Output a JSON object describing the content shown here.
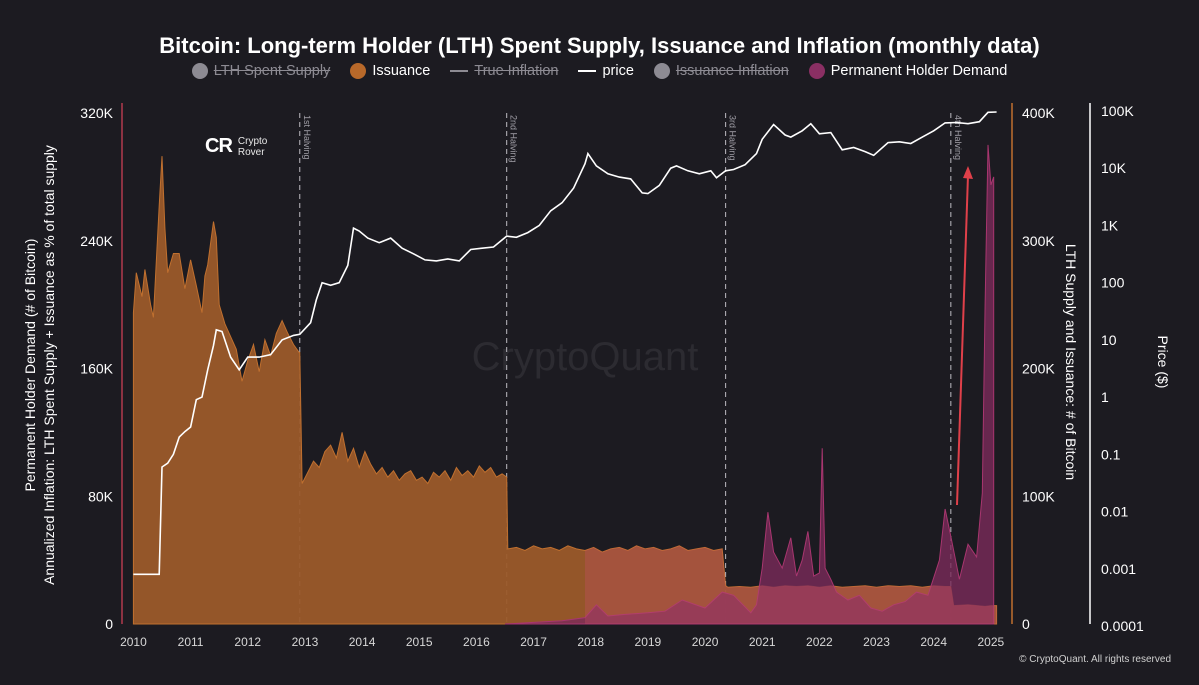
{
  "title": "Bitcoin: Long-term Holder (LTH) Spent Supply, Issuance and Inflation (monthly data)",
  "legend": [
    {
      "label": "LTH Spent Supply",
      "style": "dot",
      "color": "#8d8b93",
      "visible": false
    },
    {
      "label": "Issuance",
      "style": "dot",
      "color": "#b8692a",
      "visible": true
    },
    {
      "label": "True Inflation",
      "style": "line",
      "color": "#8d8b93",
      "visible": false
    },
    {
      "label": "price",
      "style": "line",
      "color": "#ffffff",
      "visible": true
    },
    {
      "label": "Issuance Inflation",
      "style": "dot",
      "color": "#8d8b93",
      "visible": false
    },
    {
      "label": "Permanent Holder Demand",
      "style": "dot",
      "color": "#8a2f63",
      "visible": true
    }
  ],
  "logo": {
    "line1": "Crypto",
    "line2": "Rover",
    "mark": "CR"
  },
  "watermark": "CryptoQuant",
  "copyright": "© CryptoQuant. All rights reserved",
  "axes": {
    "left_label_line1": "Permanent Holder Demand (# of Bitcoin)",
    "left_label_line2": "Annualized Inflation: LTH Spent Supply + Issuance as % of total supply",
    "right_label": "LTH Supply and Issuance: # of Bitcoin",
    "price_label": "Price ($)"
  },
  "colors": {
    "issuance_fill": "#9b5a2a",
    "issuance_stroke": "#c0702f",
    "demand_fill": "#7a2a5a",
    "demand_stroke": "#a8366f",
    "overlap_fill": "#c44d63",
    "price_line": "#ffffff",
    "arrow": "#e0404a",
    "left_axis_line": "#b23a4e",
    "right_axis_line": "#c0702f",
    "price_axis_line": "#ffffff"
  },
  "chart_data": {
    "type": "area",
    "x_range": [
      2009.8,
      2025.3
    ],
    "x_ticks": [
      2010,
      2011,
      2012,
      2013,
      2014,
      2015,
      2016,
      2017,
      2018,
      2019,
      2020,
      2021,
      2022,
      2023,
      2024,
      2025
    ],
    "y_left": {
      "ylim": [
        0,
        320000
      ],
      "ticks": [
        0,
        80000,
        160000,
        240000,
        320000
      ],
      "tick_labels": [
        "0",
        "80K",
        "160K",
        "240K",
        "320K"
      ]
    },
    "y_right": {
      "ylim": [
        0,
        400000
      ],
      "ticks": [
        0,
        100000,
        200000,
        300000,
        400000
      ],
      "tick_labels": [
        "0",
        "100K",
        "200K",
        "300K",
        "400K"
      ]
    },
    "y_price": {
      "scale": "log",
      "ylim": [
        0.0001,
        100000
      ],
      "ticks": [
        0.0001,
        0.001,
        0.01,
        0.1,
        1,
        10,
        100,
        1000,
        10000,
        100000
      ],
      "tick_labels": [
        "0.0001",
        "0.001",
        "0.01",
        "0.1",
        "1",
        "10",
        "100",
        "1K",
        "10K",
        "100K"
      ]
    },
    "halvings": [
      {
        "label": "1st Halving",
        "date": 2012.91
      },
      {
        "label": "2nd Halving",
        "date": 2016.53
      },
      {
        "label": "3rd Halving",
        "date": 2020.36
      },
      {
        "label": "4th Halving",
        "date": 2024.3
      }
    ],
    "series": [
      {
        "name": "Issuance",
        "axis": "left",
        "x": [
          2010.0,
          2010.05,
          2010.15,
          2010.2,
          2010.3,
          2010.35,
          2010.45,
          2010.5,
          2010.55,
          2010.6,
          2010.7,
          2010.8,
          2010.9,
          2011.0,
          2011.1,
          2011.2,
          2011.25,
          2011.3,
          2011.4,
          2011.45,
          2011.5,
          2011.6,
          2011.7,
          2011.8,
          2011.9,
          2012.0,
          2012.1,
          2012.2,
          2012.3,
          2012.4,
          2012.5,
          2012.6,
          2012.7,
          2012.8,
          2012.9,
          2012.91,
          2012.95,
          2013.05,
          2013.15,
          2013.25,
          2013.35,
          2013.45,
          2013.55,
          2013.65,
          2013.75,
          2013.85,
          2013.95,
          2014.05,
          2014.15,
          2014.25,
          2014.35,
          2014.45,
          2014.55,
          2014.65,
          2014.75,
          2014.85,
          2014.95,
          2015.05,
          2015.15,
          2015.25,
          2015.35,
          2015.45,
          2015.55,
          2015.65,
          2015.75,
          2015.85,
          2015.95,
          2016.05,
          2016.15,
          2016.25,
          2016.35,
          2016.45,
          2016.53,
          2016.55,
          2016.7,
          2016.85,
          2017.0,
          2017.15,
          2017.3,
          2017.45,
          2017.6,
          2017.75,
          2017.9,
          2018.05,
          2018.2,
          2018.35,
          2018.5,
          2018.65,
          2018.8,
          2018.95,
          2019.1,
          2019.25,
          2019.4,
          2019.55,
          2019.7,
          2019.85,
          2020.0,
          2020.15,
          2020.3,
          2020.36,
          2020.4,
          2020.6,
          2020.8,
          2021.0,
          2021.2,
          2021.4,
          2021.6,
          2021.8,
          2022.0,
          2022.2,
          2022.4,
          2022.6,
          2022.8,
          2023.0,
          2023.2,
          2023.4,
          2023.6,
          2023.8,
          2024.0,
          2024.2,
          2024.3,
          2024.35,
          2024.6,
          2024.9,
          2025.0,
          2025.1
        ],
        "values": [
          195000,
          220000,
          205000,
          222000,
          200000,
          192000,
          262000,
          293000,
          248000,
          220000,
          232000,
          232000,
          210000,
          228000,
          212000,
          195000,
          218000,
          225000,
          252000,
          242000,
          200000,
          188000,
          180000,
          172000,
          152000,
          165000,
          175000,
          158000,
          178000,
          168000,
          182000,
          190000,
          182000,
          175000,
          170000,
          170000,
          88000,
          95000,
          102000,
          98000,
          108000,
          112000,
          104000,
          120000,
          102000,
          110000,
          98000,
          108000,
          100000,
          94000,
          98000,
          92000,
          96000,
          90000,
          94000,
          96000,
          90000,
          92000,
          88000,
          95000,
          92000,
          96000,
          90000,
          98000,
          93000,
          96000,
          92000,
          99000,
          95000,
          98000,
          92000,
          94000,
          92000,
          47000,
          48000,
          46000,
          49000,
          47000,
          48000,
          46000,
          49000,
          47000,
          46000,
          48000,
          45000,
          47000,
          48000,
          46000,
          49000,
          47000,
          48000,
          46000,
          47000,
          49000,
          46000,
          47000,
          48000,
          46000,
          47000,
          24000,
          23000,
          23500,
          23000,
          24000,
          23000,
          24000,
          23500,
          24000,
          23000,
          24000,
          23000,
          23500,
          24000,
          23000,
          24000,
          23500,
          24000,
          23000,
          24000,
          23500,
          23500,
          11500,
          12000,
          11000,
          11500,
          11500
        ]
      },
      {
        "name": "Permanent Holder Demand",
        "axis": "left",
        "x": [
          2016.5,
          2017.0,
          2017.5,
          2017.9,
          2018.1,
          2018.3,
          2018.6,
          2019.0,
          2019.3,
          2019.6,
          2020.0,
          2020.3,
          2020.5,
          2020.8,
          2020.9,
          2021.0,
          2021.1,
          2021.2,
          2021.35,
          2021.5,
          2021.6,
          2021.7,
          2021.8,
          2021.9,
          2022.0,
          2022.05,
          2022.1,
          2022.2,
          2022.3,
          2022.5,
          2022.7,
          2022.9,
          2023.1,
          2023.3,
          2023.5,
          2023.7,
          2023.9,
          2024.1,
          2024.2,
          2024.3,
          2024.45,
          2024.6,
          2024.75,
          2024.85,
          2024.9,
          2024.95,
          2025.0,
          2025.05
        ],
        "values": [
          0,
          1000,
          2000,
          4000,
          12000,
          5000,
          6000,
          7000,
          8000,
          15000,
          10000,
          20000,
          18000,
          7000,
          12000,
          35000,
          70000,
          45000,
          35000,
          54000,
          30000,
          40000,
          58000,
          30000,
          32000,
          110000,
          35000,
          28000,
          20000,
          15000,
          18000,
          10000,
          8000,
          12000,
          14000,
          20000,
          18000,
          40000,
          72000,
          55000,
          28000,
          50000,
          42000,
          82000,
          200000,
          300000,
          275000,
          280000
        ]
      },
      {
        "name": "price",
        "axis": "price",
        "x": [
          2010.0,
          2010.45,
          2010.5,
          2010.6,
          2010.7,
          2010.8,
          2010.9,
          2011.0,
          2011.1,
          2011.2,
          2011.3,
          2011.4,
          2011.45,
          2011.55,
          2011.7,
          2011.85,
          2012.0,
          2012.2,
          2012.4,
          2012.6,
          2012.8,
          2012.91,
          2013.1,
          2013.2,
          2013.3,
          2013.45,
          2013.6,
          2013.75,
          2013.85,
          2013.95,
          2014.1,
          2014.3,
          2014.5,
          2014.7,
          2014.9,
          2015.1,
          2015.3,
          2015.5,
          2015.7,
          2015.9,
          2016.1,
          2016.3,
          2016.53,
          2016.7,
          2016.9,
          2017.1,
          2017.3,
          2017.5,
          2017.7,
          2017.9,
          2017.95,
          2018.1,
          2018.3,
          2018.5,
          2018.7,
          2018.9,
          2019.0,
          2019.2,
          2019.4,
          2019.5,
          2019.7,
          2019.9,
          2020.1,
          2020.2,
          2020.36,
          2020.5,
          2020.7,
          2020.9,
          2021.0,
          2021.2,
          2021.4,
          2021.5,
          2021.7,
          2021.85,
          2022.0,
          2022.2,
          2022.4,
          2022.6,
          2022.8,
          2022.95,
          2023.2,
          2023.4,
          2023.6,
          2023.8,
          2024.0,
          2024.2,
          2024.4,
          2024.6,
          2024.8,
          2024.95,
          2025.1
        ],
        "values": [
          0.0008,
          0.0008,
          0.06,
          0.07,
          0.1,
          0.2,
          0.25,
          0.3,
          0.9,
          1.0,
          3.0,
          8.0,
          15.0,
          14.0,
          5.0,
          3.0,
          5.0,
          5.0,
          5.5,
          10.0,
          12.0,
          12.5,
          20.0,
          50.0,
          100.0,
          90.0,
          100.0,
          200.0,
          900.0,
          800.0,
          600.0,
          500.0,
          600.0,
          400.0,
          320.0,
          250.0,
          240.0,
          260.0,
          240.0,
          380.0,
          400.0,
          420.0,
          650.0,
          620.0,
          750.0,
          1000.0,
          1800.0,
          2500.0,
          4500.0,
          12000.0,
          18000.0,
          11000.0,
          8000.0,
          7000.0,
          6500.0,
          3700.0,
          3600.0,
          5000.0,
          10000.0,
          11000.0,
          9000.0,
          8000.0,
          9000.0,
          6800.0,
          9000.0,
          9500.0,
          11500.0,
          18000.0,
          32000.0,
          58000.0,
          38000.0,
          35000.0,
          45000.0,
          60000.0,
          40000.0,
          42000.0,
          21000.0,
          23000.0,
          19500.0,
          16800.0,
          28000.0,
          29000.0,
          27000.0,
          35000.0,
          45000.0,
          62000.0,
          63000.0,
          60000.0,
          65000.0,
          95000.0,
          96000.0
        ]
      }
    ]
  }
}
